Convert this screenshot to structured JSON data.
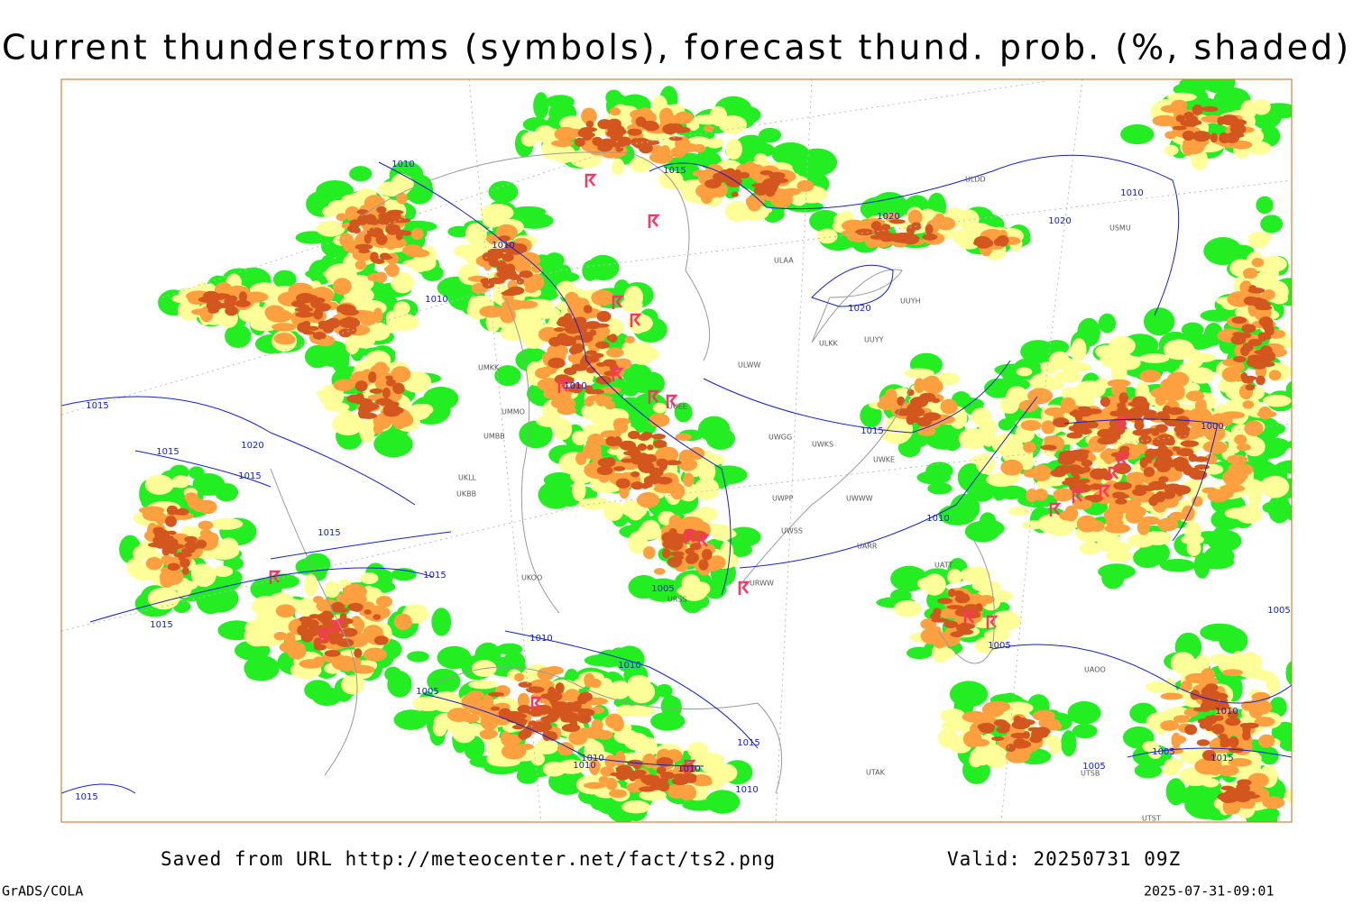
{
  "title": "Current thunderstorms (symbols), forecast thund. prob. (%, shaded)",
  "footer": {
    "source": "Saved from URL http://meteocenter.net/fact/ts2.png",
    "valid": "Valid: 20250731 09Z",
    "software": "GrADS/COLA",
    "timestamp": "2025-07-31-09:01"
  },
  "isobar_labels": [
    "1010",
    "1015",
    "1010",
    "1010",
    "1020",
    "1015",
    "1020",
    "1015",
    "1010",
    "1015",
    "1015",
    "1015",
    "1010",
    "1005",
    "1010",
    "1010",
    "1010",
    "1005",
    "1010",
    "1010",
    "1015",
    "1015",
    "1020",
    "1020",
    "1015",
    "1010",
    "1015",
    "1010",
    "1000",
    "1005",
    "1005",
    "1010",
    "1015",
    "1005",
    "1005"
  ],
  "stations": [
    "ULDD",
    "USMU",
    "ULAA",
    "UUYH",
    "ULKK",
    "UUYY",
    "ULWW",
    "UMKK",
    "UMMO",
    "UMBB",
    "UUEE",
    "UWGG",
    "UWKS",
    "UWKE",
    "UWPP",
    "UWWW",
    "UWSS",
    "UARR",
    "UKLL",
    "UKBB",
    "UKOO",
    "URSS",
    "URWW",
    "UATT",
    "UAOO",
    "UTAK",
    "UTSB",
    "UTST"
  ]
}
